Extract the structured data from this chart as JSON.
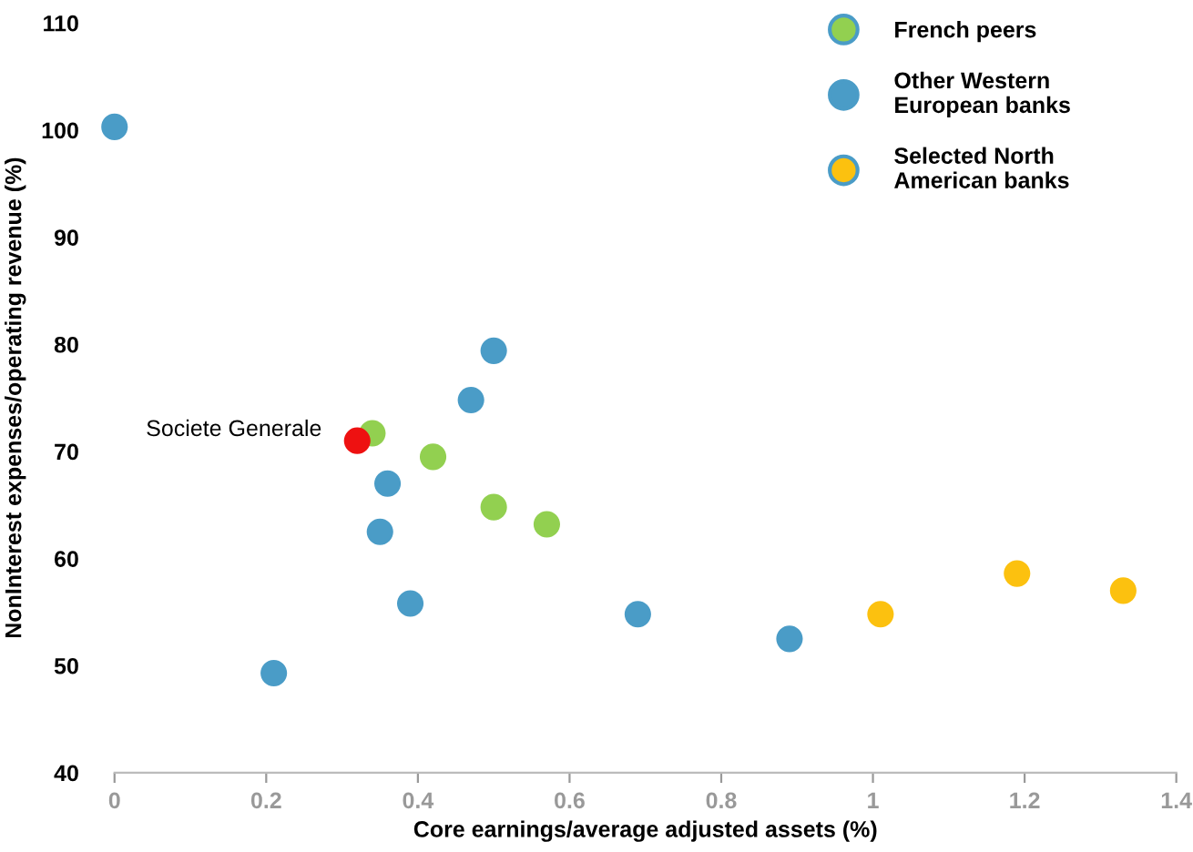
{
  "chart_data": {
    "type": "scatter",
    "xlabel": "Core earnings/average adjusted assets (%)",
    "ylabel": "NonInterest expenses/operating revenue (%)",
    "xlim": [
      0,
      1.4
    ],
    "xticks": [
      0,
      0.2,
      0.4,
      0.6,
      0.8,
      1,
      1.2,
      1.4
    ],
    "ylim": [
      40,
      110
    ],
    "yticks": [
      40,
      50,
      60,
      70,
      80,
      90,
      100,
      110
    ],
    "grid": false,
    "legend": "top right",
    "marker": "circle",
    "series": [
      {
        "name": "French peers",
        "color": "#92d050",
        "x": [
          0.34,
          0.42,
          0.5,
          0.57
        ],
        "values": [
          71.7,
          69.5,
          64.8,
          63.2
        ]
      },
      {
        "name": "Other Western European banks",
        "color": "#4a9cc7",
        "x": [
          0,
          0.21,
          0.36,
          0.35,
          0.39,
          0.5,
          0.47,
          0.69,
          0.89
        ],
        "values": [
          100.3,
          49.3,
          67.0,
          62.5,
          55.8,
          79.4,
          74.8,
          54.8,
          52.5
        ]
      },
      {
        "name": "Selected North American banks",
        "color": "#fcc10f",
        "x": [
          1.01,
          1.19,
          1.33
        ],
        "values": [
          54.8,
          58.6,
          57.0
        ]
      },
      {
        "color": "#ee1111",
        "x": [
          0.32
        ],
        "values": [
          71.0
        ]
      }
    ],
    "annotations": [
      {
        "text": "Societe Generale",
        "x": 0.32,
        "y": 71.0
      }
    ]
  }
}
